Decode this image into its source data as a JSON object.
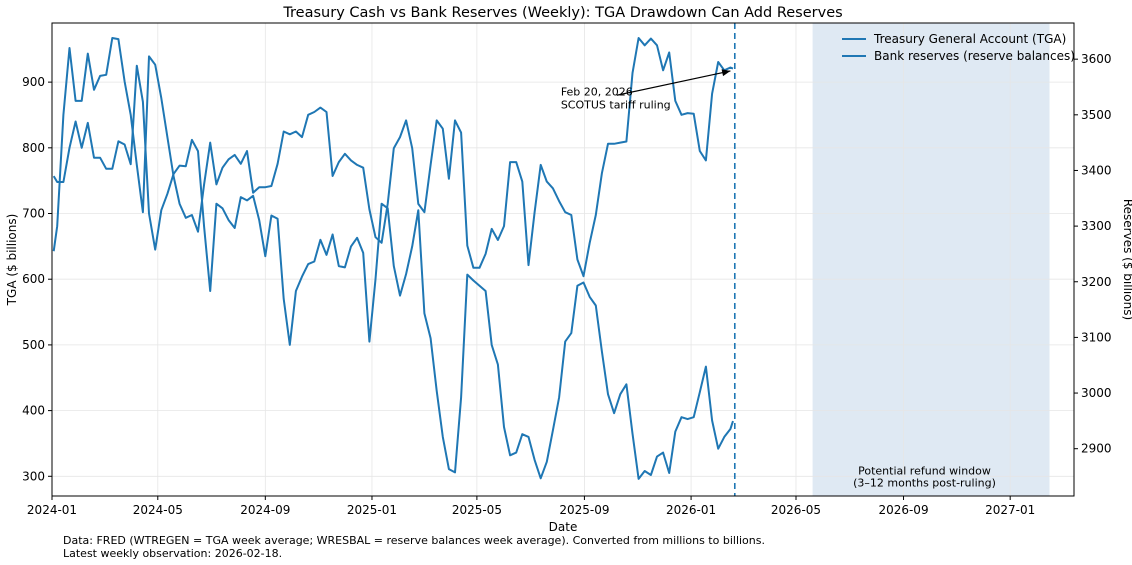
{
  "chart_data": {
    "type": "line",
    "title": "Treasury Cash vs Bank Reserves (Weekly): TGA Drawdown Can Add Reserves",
    "xlabel": "Date",
    "ylabel_left": "TGA ($ billions)",
    "ylabel_right": "Reserves ($ billions)",
    "xlim": [
      "2024-01-01",
      "2027-03-15"
    ],
    "ylim_left": [
      270,
      990
    ],
    "ylim_right": [
      2815,
      3665
    ],
    "x_ticks": [
      "2024-01",
      "2024-05",
      "2024-09",
      "2025-01",
      "2025-05",
      "2025-09",
      "2026-01",
      "2026-05",
      "2026-09",
      "2027-01"
    ],
    "y_ticks_left": [
      300,
      400,
      500,
      600,
      700,
      800,
      900
    ],
    "y_ticks_right": [
      2900,
      3000,
      3100,
      3200,
      3300,
      3400,
      3500,
      3600
    ],
    "grid": true,
    "legend": {
      "placement": "top-right",
      "entries": [
        "Treasury General Account (TGA)",
        "Bank reserves (reserve balances)"
      ]
    },
    "series": [
      {
        "name": "Treasury General Account (TGA)",
        "axis": "left",
        "color": "#1f77b4",
        "points": [
          [
            "2024-01-03",
            757
          ],
          [
            "2024-01-07",
            748
          ],
          [
            "2024-01-14",
            748
          ],
          [
            "2024-01-21",
            800
          ],
          [
            "2024-01-28",
            840
          ],
          [
            "2024-02-04",
            800
          ],
          [
            "2024-02-11",
            838
          ],
          [
            "2024-02-18",
            785
          ],
          [
            "2024-02-25",
            785
          ],
          [
            "2024-03-03",
            768
          ],
          [
            "2024-03-10",
            768
          ],
          [
            "2024-03-17",
            810
          ],
          [
            "2024-03-24",
            805
          ],
          [
            "2024-03-31",
            775
          ],
          [
            "2024-04-07",
            925
          ],
          [
            "2024-04-14",
            870
          ],
          [
            "2024-04-21",
            700
          ],
          [
            "2024-04-28",
            645
          ],
          [
            "2024-05-05",
            705
          ],
          [
            "2024-05-12",
            730
          ],
          [
            "2024-05-19",
            760
          ],
          [
            "2024-05-26",
            773
          ],
          [
            "2024-06-02",
            772
          ],
          [
            "2024-06-09",
            812
          ],
          [
            "2024-06-16",
            795
          ],
          [
            "2024-06-23",
            680
          ],
          [
            "2024-06-30",
            582
          ],
          [
            "2024-07-07",
            715
          ],
          [
            "2024-07-14",
            708
          ],
          [
            "2024-07-21",
            690
          ],
          [
            "2024-07-28",
            678
          ],
          [
            "2024-08-04",
            725
          ],
          [
            "2024-08-11",
            720
          ],
          [
            "2024-08-18",
            727
          ],
          [
            "2024-08-25",
            690
          ],
          [
            "2024-09-01",
            635
          ],
          [
            "2024-09-08",
            697
          ],
          [
            "2024-09-15",
            692
          ],
          [
            "2024-09-22",
            570
          ],
          [
            "2024-09-29",
            500
          ],
          [
            "2024-10-06",
            582
          ],
          [
            "2024-10-13",
            604
          ],
          [
            "2024-10-20",
            623
          ],
          [
            "2024-10-27",
            627
          ],
          [
            "2024-11-03",
            660
          ],
          [
            "2024-11-10",
            637
          ],
          [
            "2024-11-17",
            668
          ],
          [
            "2024-11-24",
            620
          ],
          [
            "2024-12-01",
            618
          ],
          [
            "2024-12-08",
            650
          ],
          [
            "2024-12-15",
            663
          ],
          [
            "2024-12-22",
            640
          ],
          [
            "2024-12-29",
            505
          ],
          [
            "2025-01-05",
            600
          ],
          [
            "2025-01-12",
            715
          ],
          [
            "2025-01-19",
            708
          ],
          [
            "2025-01-26",
            620
          ],
          [
            "2025-02-02",
            575
          ],
          [
            "2025-02-09",
            608
          ],
          [
            "2025-02-16",
            650
          ],
          [
            "2025-02-23",
            705
          ],
          [
            "2025-03-02",
            548
          ],
          [
            "2025-03-09",
            510
          ],
          [
            "2025-03-16",
            430
          ],
          [
            "2025-03-23",
            360
          ],
          [
            "2025-03-30",
            311
          ],
          [
            "2025-04-06",
            306
          ],
          [
            "2025-04-13",
            420
          ],
          [
            "2025-04-20",
            607
          ],
          [
            "2025-04-27",
            598
          ],
          [
            "2025-05-04",
            590
          ],
          [
            "2025-05-11",
            582
          ],
          [
            "2025-05-18",
            500
          ],
          [
            "2025-05-25",
            470
          ],
          [
            "2025-06-01",
            375
          ],
          [
            "2025-06-08",
            332
          ],
          [
            "2025-06-15",
            336
          ],
          [
            "2025-06-22",
            364
          ],
          [
            "2025-06-29",
            360
          ],
          [
            "2025-07-06",
            325
          ],
          [
            "2025-07-13",
            297
          ],
          [
            "2025-07-20",
            322
          ],
          [
            "2025-07-27",
            370
          ],
          [
            "2025-08-03",
            420
          ],
          [
            "2025-08-10",
            505
          ],
          [
            "2025-08-17",
            518
          ],
          [
            "2025-08-24",
            590
          ],
          [
            "2025-08-31",
            595
          ],
          [
            "2025-09-07",
            573
          ],
          [
            "2025-09-14",
            560
          ],
          [
            "2025-09-21",
            490
          ],
          [
            "2025-09-28",
            425
          ],
          [
            "2025-10-05",
            396
          ],
          [
            "2025-10-12",
            425
          ],
          [
            "2025-10-19",
            440
          ],
          [
            "2025-10-26",
            365
          ],
          [
            "2025-11-02",
            296
          ],
          [
            "2025-11-09",
            308
          ],
          [
            "2025-11-16",
            302
          ],
          [
            "2025-11-23",
            330
          ],
          [
            "2025-11-30",
            336
          ],
          [
            "2025-12-07",
            305
          ],
          [
            "2025-12-14",
            368
          ],
          [
            "2025-12-21",
            390
          ],
          [
            "2025-12-28",
            387
          ],
          [
            "2026-01-04",
            390
          ],
          [
            "2026-01-11",
            428
          ],
          [
            "2026-01-18",
            467
          ],
          [
            "2026-01-25",
            385
          ],
          [
            "2026-02-01",
            342
          ],
          [
            "2026-02-08",
            360
          ],
          [
            "2026-02-15",
            372
          ],
          [
            "2026-02-18",
            384
          ]
        ]
      },
      {
        "name": "Bank reserves (reserve balances)",
        "axis": "right",
        "color": "#1f77b4",
        "points": [
          [
            "2024-01-03",
            3255
          ],
          [
            "2024-01-07",
            3300
          ],
          [
            "2024-01-14",
            3500
          ],
          [
            "2024-01-21",
            3620
          ],
          [
            "2024-01-28",
            3525
          ],
          [
            "2024-02-04",
            3525
          ],
          [
            "2024-02-11",
            3610
          ],
          [
            "2024-02-18",
            3545
          ],
          [
            "2024-02-25",
            3570
          ],
          [
            "2024-03-03",
            3572
          ],
          [
            "2024-03-10",
            3638
          ],
          [
            "2024-03-17",
            3636
          ],
          [
            "2024-03-24",
            3560
          ],
          [
            "2024-03-31",
            3500
          ],
          [
            "2024-04-07",
            3410
          ],
          [
            "2024-04-14",
            3325
          ],
          [
            "2024-04-21",
            3605
          ],
          [
            "2024-04-28",
            3590
          ],
          [
            "2024-05-05",
            3530
          ],
          [
            "2024-05-12",
            3460
          ],
          [
            "2024-05-19",
            3390
          ],
          [
            "2024-05-26",
            3340
          ],
          [
            "2024-06-02",
            3315
          ],
          [
            "2024-06-09",
            3320
          ],
          [
            "2024-06-16",
            3290
          ],
          [
            "2024-06-23",
            3375
          ],
          [
            "2024-06-30",
            3450
          ],
          [
            "2024-07-07",
            3375
          ],
          [
            "2024-07-14",
            3405
          ],
          [
            "2024-07-21",
            3420
          ],
          [
            "2024-07-28",
            3428
          ],
          [
            "2024-08-04",
            3412
          ],
          [
            "2024-08-11",
            3435
          ],
          [
            "2024-08-18",
            3360
          ],
          [
            "2024-08-25",
            3370
          ],
          [
            "2024-09-01",
            3370
          ],
          [
            "2024-09-08",
            3372
          ],
          [
            "2024-09-15",
            3412
          ],
          [
            "2024-09-22",
            3470
          ],
          [
            "2024-09-29",
            3465
          ],
          [
            "2024-10-06",
            3470
          ],
          [
            "2024-10-13",
            3460
          ],
          [
            "2024-10-20",
            3500
          ],
          [
            "2024-10-27",
            3505
          ],
          [
            "2024-11-03",
            3513
          ],
          [
            "2024-11-10",
            3505
          ],
          [
            "2024-11-17",
            3390
          ],
          [
            "2024-11-24",
            3415
          ],
          [
            "2024-12-01",
            3430
          ],
          [
            "2024-12-08",
            3418
          ],
          [
            "2024-12-15",
            3410
          ],
          [
            "2024-12-22",
            3405
          ],
          [
            "2024-12-29",
            3330
          ],
          [
            "2025-01-05",
            3280
          ],
          [
            "2025-01-12",
            3270
          ],
          [
            "2025-01-19",
            3340
          ],
          [
            "2025-01-26",
            3440
          ],
          [
            "2025-02-02",
            3460
          ],
          [
            "2025-02-09",
            3490
          ],
          [
            "2025-02-16",
            3440
          ],
          [
            "2025-02-23",
            3340
          ],
          [
            "2025-03-02",
            3325
          ],
          [
            "2025-03-09",
            3410
          ],
          [
            "2025-03-16",
            3490
          ],
          [
            "2025-03-23",
            3475
          ],
          [
            "2025-03-30",
            3385
          ],
          [
            "2025-04-06",
            3490
          ],
          [
            "2025-04-13",
            3468
          ],
          [
            "2025-04-20",
            3265
          ],
          [
            "2025-04-27",
            3225
          ],
          [
            "2025-05-04",
            3225
          ],
          [
            "2025-05-11",
            3250
          ],
          [
            "2025-05-18",
            3295
          ],
          [
            "2025-05-25",
            3275
          ],
          [
            "2025-06-01",
            3300
          ],
          [
            "2025-06-08",
            3415
          ],
          [
            "2025-06-15",
            3415
          ],
          [
            "2025-06-22",
            3380
          ],
          [
            "2025-06-29",
            3230
          ],
          [
            "2025-07-06",
            3325
          ],
          [
            "2025-07-13",
            3410
          ],
          [
            "2025-07-20",
            3380
          ],
          [
            "2025-07-27",
            3368
          ],
          [
            "2025-08-03",
            3345
          ],
          [
            "2025-08-10",
            3325
          ],
          [
            "2025-08-17",
            3320
          ],
          [
            "2025-08-24",
            3240
          ],
          [
            "2025-08-31",
            3210
          ],
          [
            "2025-09-07",
            3270
          ],
          [
            "2025-09-14",
            3320
          ],
          [
            "2025-09-21",
            3395
          ],
          [
            "2025-09-28",
            3448
          ],
          [
            "2025-10-05",
            3448
          ],
          [
            "2025-10-12",
            3450
          ],
          [
            "2025-10-19",
            3452
          ],
          [
            "2025-10-26",
            3575
          ],
          [
            "2025-11-02",
            3638
          ],
          [
            "2025-11-09",
            3625
          ],
          [
            "2025-11-16",
            3637
          ],
          [
            "2025-11-23",
            3625
          ],
          [
            "2025-11-30",
            3580
          ],
          [
            "2025-12-07",
            3612
          ],
          [
            "2025-12-14",
            3525
          ],
          [
            "2025-12-21",
            3500
          ],
          [
            "2025-12-28",
            3503
          ],
          [
            "2026-01-04",
            3502
          ],
          [
            "2026-01-11",
            3435
          ],
          [
            "2026-01-18",
            3418
          ],
          [
            "2026-01-25",
            3538
          ],
          [
            "2026-02-01",
            3595
          ],
          [
            "2026-02-08",
            3580
          ],
          [
            "2026-02-15",
            3585
          ],
          [
            "2026-02-18",
            3583
          ]
        ]
      }
    ],
    "vline": {
      "date": "2026-02-20",
      "style": "dashed",
      "color": "#1f77b4"
    },
    "arrow_annotation": {
      "text_lines": [
        "Feb 20, 2026",
        "SCOTUS tariff ruling"
      ],
      "text_at": [
        "2025-08-05",
        880
      ],
      "arrow_from": [
        "2025-10-08",
        880
      ],
      "arrow_to": [
        "2026-02-15",
        917
      ]
    },
    "shaded_region": {
      "start": "2026-05-20",
      "end": "2027-02-15",
      "color": "#dfe9f3",
      "label_lines": [
        "Potential refund window",
        "(3–12 months post-ruling)"
      ],
      "label_at": [
        "2026-09-25",
        303
      ]
    }
  },
  "footnote": {
    "line1": "Data: FRED (WTREGEN = TGA week average; WRESBAL = reserve balances week average). Converted from millions to billions.",
    "line2": "Latest weekly observation: 2026-02-18."
  }
}
